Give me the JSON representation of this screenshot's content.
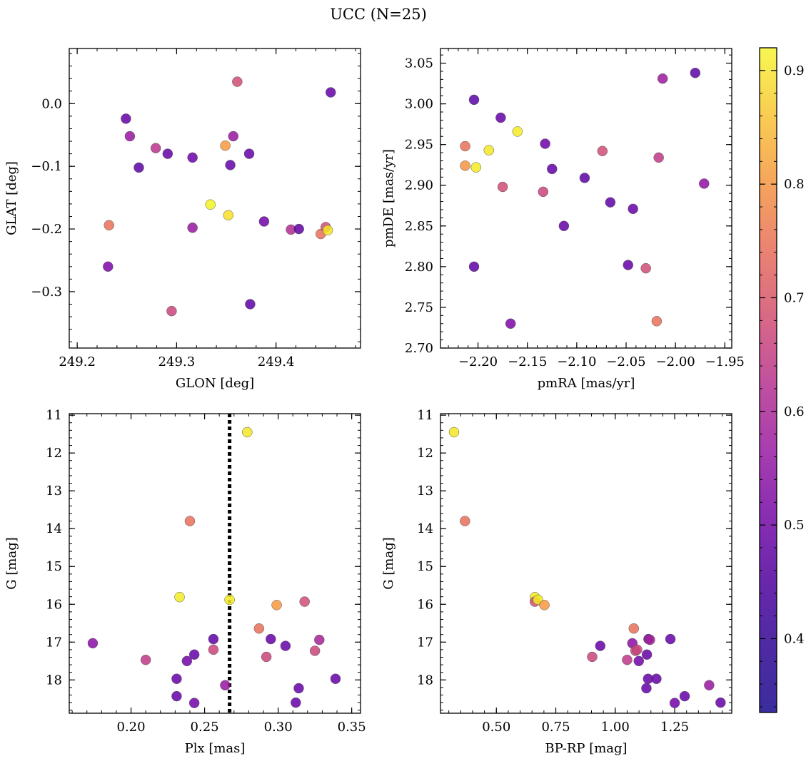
{
  "figure": {
    "suptitle": "UCC (N=25)",
    "colormap": "plasma",
    "point_edge_color": "#555555",
    "parallax_line_color": "#000000"
  },
  "colorbar": {
    "min": 0.335,
    "max": 0.92,
    "ticks": [
      0.4,
      0.5,
      0.6,
      0.7,
      0.8,
      0.9
    ],
    "tick_labels": [
      "0.4",
      "0.5",
      "0.6",
      "0.7",
      "0.8",
      "0.9"
    ]
  },
  "chart_data": [
    {
      "id": "glon-glat",
      "type": "scatter",
      "xlabel": "GLON [deg]",
      "ylabel": "GLAT [deg]",
      "xlim": [
        249.192,
        249.485
      ],
      "ylim": [
        -0.39,
        0.088
      ],
      "xticks": [
        249.2,
        249.3,
        249.4
      ],
      "xtick_labels": [
        "249.2",
        "249.3",
        "249.4"
      ],
      "yticks": [
        0.0,
        -0.1,
        -0.2,
        -0.3
      ],
      "ytick_labels": [
        "0.0",
        "−0.1",
        "−0.2",
        "−0.3"
      ],
      "x_minor_step": 0.02,
      "y_minor_step": 0.02,
      "points": [
        {
          "x": 249.232,
          "y": -0.194,
          "c": 0.68
        },
        {
          "x": 249.231,
          "y": -0.26,
          "c": 0.42
        },
        {
          "x": 249.249,
          "y": -0.024,
          "c": 0.38
        },
        {
          "x": 249.253,
          "y": -0.052,
          "c": 0.47
        },
        {
          "x": 249.262,
          "y": -0.102,
          "c": 0.36
        },
        {
          "x": 249.279,
          "y": -0.071,
          "c": 0.54
        },
        {
          "x": 249.291,
          "y": -0.08,
          "c": 0.38
        },
        {
          "x": 249.295,
          "y": -0.331,
          "c": 0.58
        },
        {
          "x": 249.316,
          "y": -0.086,
          "c": 0.39
        },
        {
          "x": 249.316,
          "y": -0.198,
          "c": 0.47
        },
        {
          "x": 249.334,
          "y": -0.161,
          "c": 0.91
        },
        {
          "x": 249.349,
          "y": -0.067,
          "c": 0.76
        },
        {
          "x": 249.352,
          "y": -0.178,
          "c": 0.88
        },
        {
          "x": 249.354,
          "y": -0.098,
          "c": 0.38
        },
        {
          "x": 249.357,
          "y": -0.052,
          "c": 0.47
        },
        {
          "x": 249.361,
          "y": 0.035,
          "c": 0.6
        },
        {
          "x": 249.373,
          "y": -0.08,
          "c": 0.38
        },
        {
          "x": 249.374,
          "y": -0.32,
          "c": 0.36
        },
        {
          "x": 249.388,
          "y": -0.188,
          "c": 0.4
        },
        {
          "x": 249.415,
          "y": -0.201,
          "c": 0.52
        },
        {
          "x": 249.423,
          "y": -0.2,
          "c": 0.37
        },
        {
          "x": 249.445,
          "y": -0.208,
          "c": 0.68
        },
        {
          "x": 249.45,
          "y": -0.197,
          "c": 0.6
        },
        {
          "x": 249.452,
          "y": -0.202,
          "c": 0.89
        },
        {
          "x": 249.455,
          "y": 0.018,
          "c": 0.38
        }
      ]
    },
    {
      "id": "pmra-pmde",
      "type": "scatter",
      "xlabel": "pmRA [mas/yr]",
      "ylabel": "pmDE [mas/yr]",
      "xlim": [
        -2.238,
        -1.943
      ],
      "ylim": [
        2.7,
        3.068
      ],
      "xticks": [
        -2.2,
        -2.15,
        -2.1,
        -2.05,
        -2.0,
        -1.95
      ],
      "xtick_labels": [
        "−2.20",
        "−2.15",
        "−2.10",
        "−2.05",
        "−2.00",
        "−1.95"
      ],
      "yticks": [
        2.7,
        2.75,
        2.8,
        2.85,
        2.9,
        2.95,
        3.0,
        3.05
      ],
      "ytick_labels": [
        "2.70",
        "2.75",
        "2.80",
        "2.85",
        "2.90",
        "2.95",
        "3.00",
        "3.05"
      ],
      "x_minor_step": 0.01,
      "y_minor_step": 0.01,
      "points": [
        {
          "x": -2.213,
          "y": 2.948,
          "c": 0.68
        },
        {
          "x": -2.213,
          "y": 2.924,
          "c": 0.75
        },
        {
          "x": -2.204,
          "y": 3.005,
          "c": 0.36
        },
        {
          "x": -2.204,
          "y": 2.8,
          "c": 0.37
        },
        {
          "x": -2.202,
          "y": 2.922,
          "c": 0.9
        },
        {
          "x": -2.189,
          "y": 2.943,
          "c": 0.89
        },
        {
          "x": -2.177,
          "y": 2.983,
          "c": 0.38
        },
        {
          "x": -2.175,
          "y": 2.898,
          "c": 0.6
        },
        {
          "x": -2.167,
          "y": 2.73,
          "c": 0.42
        },
        {
          "x": -2.16,
          "y": 2.966,
          "c": 0.9
        },
        {
          "x": -2.134,
          "y": 2.892,
          "c": 0.58
        },
        {
          "x": -2.132,
          "y": 2.951,
          "c": 0.39
        },
        {
          "x": -2.125,
          "y": 2.92,
          "c": 0.37
        },
        {
          "x": -2.113,
          "y": 2.85,
          "c": 0.38
        },
        {
          "x": -2.092,
          "y": 2.909,
          "c": 0.36
        },
        {
          "x": -2.074,
          "y": 2.942,
          "c": 0.6
        },
        {
          "x": -2.066,
          "y": 2.879,
          "c": 0.37
        },
        {
          "x": -2.048,
          "y": 2.802,
          "c": 0.38
        },
        {
          "x": -2.043,
          "y": 2.871,
          "c": 0.38
        },
        {
          "x": -2.03,
          "y": 2.798,
          "c": 0.6
        },
        {
          "x": -2.019,
          "y": 2.733,
          "c": 0.68
        },
        {
          "x": -2.017,
          "y": 2.934,
          "c": 0.55
        },
        {
          "x": -2.013,
          "y": 3.031,
          "c": 0.48
        },
        {
          "x": -1.98,
          "y": 3.038,
          "c": 0.36
        },
        {
          "x": -1.971,
          "y": 2.902,
          "c": 0.46
        }
      ]
    },
    {
      "id": "plx-g",
      "type": "scatter",
      "xlabel": "Plx [mas]",
      "ylabel": "G [mag]",
      "xlim": [
        0.158,
        0.356
      ],
      "ylim": [
        18.88,
        10.96
      ],
      "xticks": [
        0.2,
        0.25,
        0.3,
        0.35
      ],
      "xtick_labels": [
        "0.20",
        "0.25",
        "0.30",
        "0.35"
      ],
      "yticks": [
        11,
        12,
        13,
        14,
        15,
        16,
        17,
        18
      ],
      "ytick_labels": [
        "11",
        "12",
        "13",
        "14",
        "15",
        "16",
        "17",
        "18"
      ],
      "x_minor_step": 0.01,
      "y_minor_step": 0.2,
      "vline": 0.267,
      "points": [
        {
          "x": 0.174,
          "y": 17.03,
          "c": 0.45
        },
        {
          "x": 0.21,
          "y": 17.47,
          "c": 0.55
        },
        {
          "x": 0.231,
          "y": 17.97,
          "c": 0.38
        },
        {
          "x": 0.231,
          "y": 18.43,
          "c": 0.38
        },
        {
          "x": 0.233,
          "y": 15.81,
          "c": 0.9
        },
        {
          "x": 0.238,
          "y": 17.5,
          "c": 0.4
        },
        {
          "x": 0.24,
          "y": 13.8,
          "c": 0.68
        },
        {
          "x": 0.243,
          "y": 17.33,
          "c": 0.38
        },
        {
          "x": 0.243,
          "y": 18.61,
          "c": 0.4
        },
        {
          "x": 0.256,
          "y": 16.92,
          "c": 0.37
        },
        {
          "x": 0.256,
          "y": 17.2,
          "c": 0.58
        },
        {
          "x": 0.264,
          "y": 18.14,
          "c": 0.47
        },
        {
          "x": 0.267,
          "y": 15.88,
          "c": 0.9
        },
        {
          "x": 0.279,
          "y": 11.45,
          "c": 0.89
        },
        {
          "x": 0.287,
          "y": 16.64,
          "c": 0.68
        },
        {
          "x": 0.292,
          "y": 17.39,
          "c": 0.58
        },
        {
          "x": 0.295,
          "y": 16.92,
          "c": 0.38
        },
        {
          "x": 0.299,
          "y": 16.02,
          "c": 0.76
        },
        {
          "x": 0.305,
          "y": 17.1,
          "c": 0.38
        },
        {
          "x": 0.312,
          "y": 18.6,
          "c": 0.38
        },
        {
          "x": 0.314,
          "y": 18.22,
          "c": 0.38
        },
        {
          "x": 0.318,
          "y": 15.93,
          "c": 0.6
        },
        {
          "x": 0.325,
          "y": 17.23,
          "c": 0.58
        },
        {
          "x": 0.328,
          "y": 16.94,
          "c": 0.5
        },
        {
          "x": 0.339,
          "y": 17.97,
          "c": 0.38
        }
      ]
    },
    {
      "id": "bprp-g",
      "type": "scatter",
      "xlabel": "BP-RP [mag]",
      "ylabel": "G [mag]",
      "xlim": [
        0.265,
        1.49
      ],
      "ylim": [
        18.88,
        10.96
      ],
      "xticks": [
        0.5,
        0.75,
        1.0,
        1.25
      ],
      "xtick_labels": [
        "0.50",
        "0.75",
        "1.00",
        "1.25"
      ],
      "yticks": [
        11,
        12,
        13,
        14,
        15,
        16,
        17,
        18
      ],
      "ytick_labels": [
        "11",
        "12",
        "13",
        "14",
        "15",
        "16",
        "17",
        "18"
      ],
      "x_minor_step": 0.05,
      "y_minor_step": 0.2,
      "points": [
        {
          "x": 0.322,
          "y": 11.45,
          "c": 0.89
        },
        {
          "x": 0.368,
          "y": 13.8,
          "c": 0.68
        },
        {
          "x": 0.662,
          "y": 15.81,
          "c": 0.9
        },
        {
          "x": 0.662,
          "y": 15.93,
          "c": 0.6
        },
        {
          "x": 0.675,
          "y": 15.88,
          "c": 0.9
        },
        {
          "x": 0.702,
          "y": 16.02,
          "c": 0.76
        },
        {
          "x": 0.903,
          "y": 17.39,
          "c": 0.58
        },
        {
          "x": 0.937,
          "y": 17.1,
          "c": 0.38
        },
        {
          "x": 1.05,
          "y": 17.47,
          "c": 0.55
        },
        {
          "x": 1.072,
          "y": 17.03,
          "c": 0.45
        },
        {
          "x": 1.078,
          "y": 16.64,
          "c": 0.68
        },
        {
          "x": 1.085,
          "y": 17.23,
          "c": 0.58
        },
        {
          "x": 1.092,
          "y": 17.2,
          "c": 0.58
        },
        {
          "x": 1.099,
          "y": 17.5,
          "c": 0.4
        },
        {
          "x": 1.131,
          "y": 18.22,
          "c": 0.38
        },
        {
          "x": 1.133,
          "y": 17.33,
          "c": 0.38
        },
        {
          "x": 1.138,
          "y": 17.97,
          "c": 0.38
        },
        {
          "x": 1.14,
          "y": 16.92,
          "c": 0.37
        },
        {
          "x": 1.146,
          "y": 16.94,
          "c": 0.5
        },
        {
          "x": 1.173,
          "y": 17.97,
          "c": 0.38
        },
        {
          "x": 1.232,
          "y": 16.92,
          "c": 0.38
        },
        {
          "x": 1.25,
          "y": 18.61,
          "c": 0.4
        },
        {
          "x": 1.292,
          "y": 18.43,
          "c": 0.38
        },
        {
          "x": 1.395,
          "y": 18.14,
          "c": 0.47
        },
        {
          "x": 1.443,
          "y": 18.6,
          "c": 0.38
        }
      ]
    }
  ]
}
